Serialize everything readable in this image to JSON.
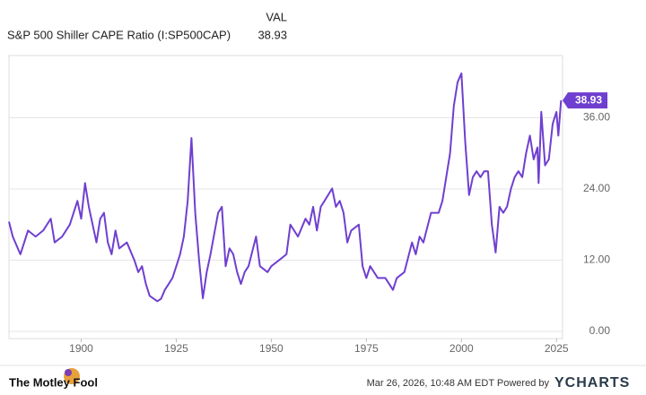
{
  "chart_data": {
    "type": "line",
    "column_header": "VAL",
    "latest_value": 38.93,
    "series": [
      {
        "name": "S&P 500 Shiller CAPE Ratio (I:SP500CAP)",
        "color": "#6f3fd0",
        "x": [
          1881,
          1882,
          1884,
          1885,
          1886,
          1888,
          1890,
          1892,
          1893,
          1895,
          1897,
          1899,
          1900,
          1901,
          1902,
          1904,
          1905,
          1906,
          1907,
          1908,
          1909,
          1910,
          1912,
          1914,
          1915,
          1916,
          1917,
          1918,
          1920,
          1921,
          1922,
          1923,
          1924,
          1925,
          1926,
          1927,
          1928,
          1929,
          1930,
          1931,
          1932,
          1933,
          1934,
          1936,
          1937,
          1938,
          1939,
          1940,
          1941,
          1942,
          1943,
          1944,
          1946,
          1947,
          1949,
          1950,
          1952,
          1954,
          1955,
          1957,
          1959,
          1960,
          1961,
          1962,
          1963,
          1964,
          1966,
          1967,
          1968,
          1969,
          1970,
          1971,
          1973,
          1974,
          1975,
          1976,
          1977,
          1978,
          1980,
          1981,
          1982,
          1983,
          1985,
          1987,
          1988,
          1989,
          1990,
          1992,
          1994,
          1995,
          1997,
          1998,
          1999,
          2000,
          2001,
          2002,
          2003,
          2004,
          2005,
          2006,
          2007,
          2008,
          2009,
          2010,
          2011,
          2012,
          2013,
          2014,
          2015,
          2016,
          2017,
          2018,
          2019,
          2020,
          2020.3,
          2021,
          2022,
          2023,
          2024,
          2025,
          2025.5,
          2026.2
        ],
        "values": [
          18.5,
          16,
          13,
          15,
          17,
          16,
          17,
          19,
          15,
          16,
          18,
          22,
          19,
          25,
          21,
          15,
          19,
          20,
          15,
          13,
          17,
          14,
          15,
          12,
          10,
          11,
          8,
          6,
          5.1,
          5.5,
          7,
          8,
          9,
          11,
          13,
          16,
          22,
          32.6,
          20,
          12,
          5.6,
          10,
          13,
          20,
          21,
          11,
          14,
          13,
          10,
          8,
          10,
          11,
          16,
          11,
          10,
          11,
          12,
          13,
          18,
          16,
          19,
          18,
          21,
          17,
          21,
          22,
          24.1,
          21,
          22,
          20,
          15,
          17,
          18,
          11,
          9,
          11,
          10,
          9,
          9,
          8,
          7,
          9,
          10,
          15,
          13,
          16,
          15,
          20,
          20,
          22,
          30,
          38,
          42,
          43.5,
          32,
          23,
          26,
          27,
          26,
          27,
          27,
          18,
          13.3,
          21,
          20,
          21,
          24,
          26,
          27,
          26,
          30,
          33,
          29,
          31,
          25,
          37,
          28,
          29,
          35,
          37,
          33,
          38.93
        ]
      }
    ],
    "xlim": [
      1881,
      2026.6
    ],
    "ylim": [
      -1.2,
      46.5
    ],
    "xticks": [
      1900,
      1925,
      1950,
      1975,
      2000,
      2025
    ],
    "yticks": [
      {
        "value": 0,
        "label": "0.00"
      },
      {
        "value": 12,
        "label": "12.00"
      },
      {
        "value": 24,
        "label": "24.00"
      },
      {
        "value": 36,
        "label": "36.00"
      }
    ],
    "grid": true,
    "footer": {
      "brand": "The Motley Fool",
      "timestamp": "Mar 26, 2026, 10:48 AM EDT Powered by",
      "provider": "YCHARTS"
    }
  }
}
